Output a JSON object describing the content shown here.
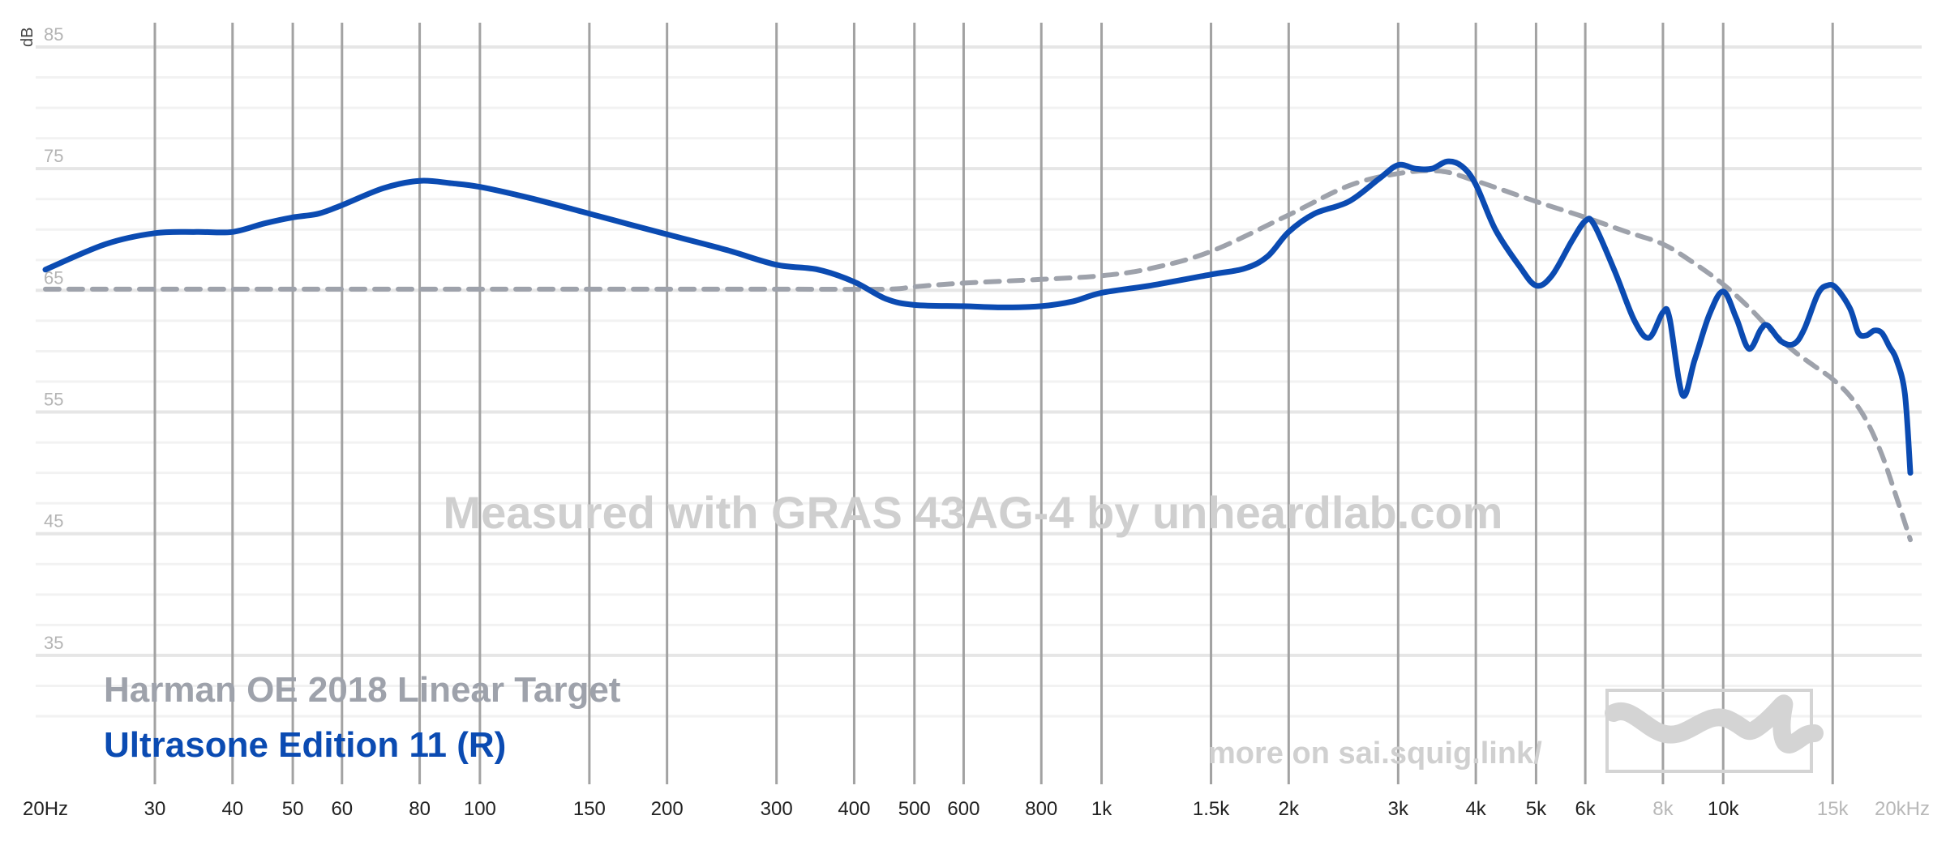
{
  "chart_data": {
    "type": "line",
    "title": "",
    "xlabel": "",
    "ylabel": "dB",
    "x_scale": "log",
    "xlim": [
      20,
      20000
    ],
    "ylim": [
      30,
      85
    ],
    "grid": true,
    "y_ticks": [
      {
        "value": 85,
        "label": "85"
      },
      {
        "value": 75,
        "label": "75"
      },
      {
        "value": 65,
        "label": "65"
      },
      {
        "value": 55,
        "label": "55"
      },
      {
        "value": 45,
        "label": "45"
      },
      {
        "value": 35,
        "label": "35"
      }
    ],
    "x_ticks": [
      {
        "value": 20,
        "label": "20Hz",
        "faint": false
      },
      {
        "value": 30,
        "label": "30",
        "faint": false
      },
      {
        "value": 40,
        "label": "40",
        "faint": false
      },
      {
        "value": 50,
        "label": "50",
        "faint": false
      },
      {
        "value": 60,
        "label": "60",
        "faint": false
      },
      {
        "value": 80,
        "label": "80",
        "faint": false
      },
      {
        "value": 100,
        "label": "100",
        "faint": false
      },
      {
        "value": 150,
        "label": "150",
        "faint": false
      },
      {
        "value": 200,
        "label": "200",
        "faint": false
      },
      {
        "value": 300,
        "label": "300",
        "faint": false
      },
      {
        "value": 400,
        "label": "400",
        "faint": false
      },
      {
        "value": 500,
        "label": "500",
        "faint": false
      },
      {
        "value": 600,
        "label": "600",
        "faint": false
      },
      {
        "value": 800,
        "label": "800",
        "faint": false
      },
      {
        "value": 1000,
        "label": "1k",
        "faint": false
      },
      {
        "value": 1500,
        "label": "1.5k",
        "faint": false
      },
      {
        "value": 2000,
        "label": "2k",
        "faint": false
      },
      {
        "value": 3000,
        "label": "3k",
        "faint": false
      },
      {
        "value": 4000,
        "label": "4k",
        "faint": false
      },
      {
        "value": 5000,
        "label": "5k",
        "faint": false
      },
      {
        "value": 6000,
        "label": "6k",
        "faint": false
      },
      {
        "value": 8000,
        "label": "8k",
        "faint": true
      },
      {
        "value": 10000,
        "label": "10k",
        "faint": false
      },
      {
        "value": 15000,
        "label": "15k",
        "faint": true
      },
      {
        "value": 20000,
        "label": "20kHz",
        "faint": true
      }
    ],
    "series": [
      {
        "name": "Harman OE 2018 Linear Target",
        "color": "#9ea2ab",
        "style": "dashed",
        "points": [
          [
            20,
            65.1
          ],
          [
            100,
            65.1
          ],
          [
            300,
            65.1
          ],
          [
            450,
            65.1
          ],
          [
            500,
            65.3
          ],
          [
            600,
            65.6
          ],
          [
            800,
            65.9
          ],
          [
            1000,
            66.2
          ],
          [
            1200,
            66.8
          ],
          [
            1500,
            68.2
          ],
          [
            2000,
            71.2
          ],
          [
            2500,
            73.6
          ],
          [
            3000,
            74.6
          ],
          [
            3500,
            74.8
          ],
          [
            4000,
            74.0
          ],
          [
            5000,
            72.3
          ],
          [
            6000,
            71.0
          ],
          [
            7000,
            69.8
          ],
          [
            8000,
            68.8
          ],
          [
            9000,
            67.2
          ],
          [
            10000,
            65.5
          ],
          [
            11000,
            63.6
          ],
          [
            12000,
            61.6
          ],
          [
            13000,
            60.0
          ],
          [
            14000,
            58.8
          ],
          [
            15000,
            57.7
          ],
          [
            16000,
            56.3
          ],
          [
            17000,
            54.3
          ],
          [
            18000,
            51.5
          ],
          [
            19000,
            48.0
          ],
          [
            20000,
            44.5
          ]
        ]
      },
      {
        "name": "Ultrasone Edition 11 (R)",
        "color": "#0b4bb2",
        "style": "solid",
        "points": [
          [
            20,
            66.7
          ],
          [
            25,
            68.8
          ],
          [
            30,
            69.7
          ],
          [
            35,
            69.8
          ],
          [
            40,
            69.8
          ],
          [
            45,
            70.5
          ],
          [
            50,
            71.0
          ],
          [
            55,
            71.3
          ],
          [
            60,
            72.0
          ],
          [
            70,
            73.4
          ],
          [
            80,
            74.0
          ],
          [
            90,
            73.8
          ],
          [
            100,
            73.5
          ],
          [
            120,
            72.6
          ],
          [
            150,
            71.3
          ],
          [
            200,
            69.6
          ],
          [
            250,
            68.3
          ],
          [
            300,
            67.1
          ],
          [
            350,
            66.7
          ],
          [
            400,
            65.7
          ],
          [
            450,
            64.3
          ],
          [
            500,
            63.8
          ],
          [
            600,
            63.7
          ],
          [
            700,
            63.6
          ],
          [
            800,
            63.7
          ],
          [
            900,
            64.1
          ],
          [
            1000,
            64.8
          ],
          [
            1200,
            65.4
          ],
          [
            1500,
            66.3
          ],
          [
            1700,
            66.8
          ],
          [
            1850,
            67.8
          ],
          [
            2000,
            69.8
          ],
          [
            2200,
            71.3
          ],
          [
            2500,
            72.3
          ],
          [
            2800,
            74.2
          ],
          [
            3000,
            75.3
          ],
          [
            3200,
            75.0
          ],
          [
            3400,
            75.0
          ],
          [
            3600,
            75.6
          ],
          [
            3800,
            75.2
          ],
          [
            4000,
            73.7
          ],
          [
            4300,
            70.0
          ],
          [
            4700,
            67.0
          ],
          [
            5000,
            65.4
          ],
          [
            5300,
            66.2
          ],
          [
            5700,
            69.0
          ],
          [
            6000,
            70.7
          ],
          [
            6200,
            70.4
          ],
          [
            6700,
            66.5
          ],
          [
            7200,
            62.5
          ],
          [
            7600,
            61.1
          ],
          [
            8000,
            63.2
          ],
          [
            8200,
            62.7
          ],
          [
            8600,
            56.4
          ],
          [
            9000,
            59.3
          ],
          [
            9500,
            63.0
          ],
          [
            10000,
            64.9
          ],
          [
            10500,
            62.7
          ],
          [
            11000,
            60.2
          ],
          [
            11500,
            61.8
          ],
          [
            11800,
            62.1
          ],
          [
            12400,
            60.8
          ],
          [
            13000,
            60.6
          ],
          [
            13500,
            61.8
          ],
          [
            14200,
            64.7
          ],
          [
            14700,
            65.4
          ],
          [
            15200,
            65.2
          ],
          [
            16000,
            63.5
          ],
          [
            16500,
            61.5
          ],
          [
            17000,
            61.3
          ],
          [
            17500,
            61.7
          ],
          [
            18000,
            61.5
          ],
          [
            18500,
            60.4
          ],
          [
            19000,
            59.3
          ],
          [
            19600,
            56.5
          ],
          [
            20000,
            50.0
          ]
        ]
      }
    ],
    "legend": {
      "placement": "bottom-left",
      "entries": [
        "Harman OE 2018 Linear Target",
        "Ultrasone Edition 11 (R)"
      ]
    },
    "annotations": {
      "watermark": "Measured with GRAS 43AG-4 by unheardlab.com",
      "link_text": "more on sai.squig.link/"
    }
  }
}
